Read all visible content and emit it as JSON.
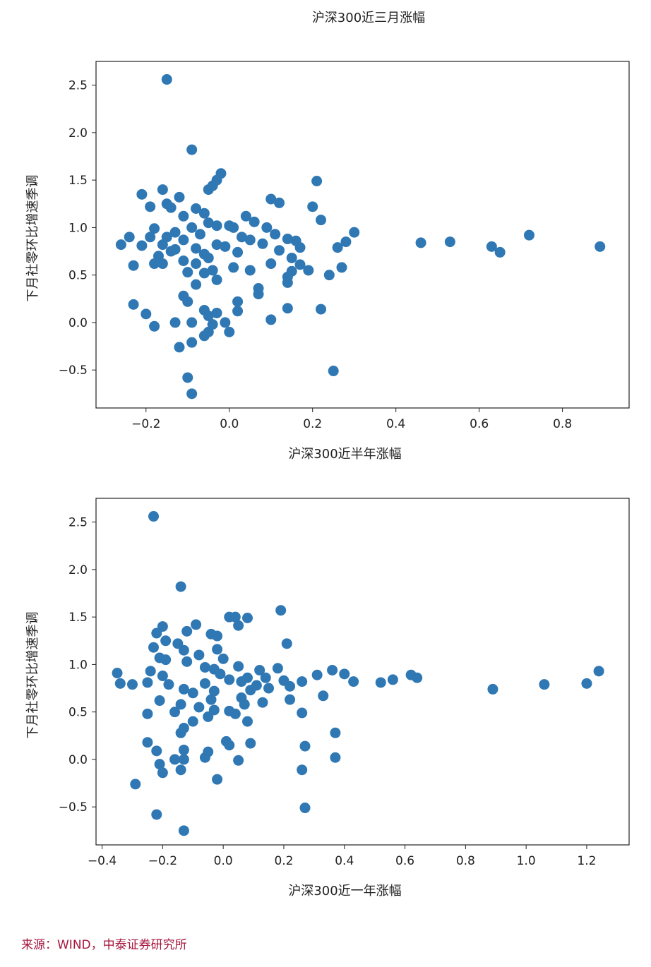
{
  "figure_title": "沪深300近三月涨幅",
  "source": "来源：WIND，中泰证券研究所",
  "colors": {
    "marker": "#2f78b4",
    "source_text": "#a5143c"
  },
  "chart_data": [
    {
      "type": "scatter",
      "title": "",
      "xlabel": "沪深300近半年涨幅",
      "ylabel": "下月社零环比增速季调",
      "xlim": [
        -0.32,
        0.96
      ],
      "ylim": [
        -0.9,
        2.75
      ],
      "xticks": [
        -0.2,
        0.0,
        0.2,
        0.4,
        0.6,
        0.8
      ],
      "xtick_labels": [
        "−0.2",
        "0.0",
        "0.2",
        "0.4",
        "0.6",
        "0.8"
      ],
      "yticks": [
        -0.5,
        0.0,
        0.5,
        1.0,
        1.5,
        2.0,
        2.5
      ],
      "ytick_labels": [
        "−0.5",
        "0.0",
        "0.5",
        "1.0",
        "1.5",
        "2.0",
        "2.5"
      ],
      "points": [
        [
          -0.15,
          2.56
        ],
        [
          -0.09,
          1.82
        ],
        [
          -0.02,
          1.57
        ],
        [
          -0.03,
          1.5
        ],
        [
          0.21,
          1.49
        ],
        [
          -0.04,
          1.44
        ],
        [
          -0.16,
          1.4
        ],
        [
          -0.05,
          1.4
        ],
        [
          -0.21,
          1.35
        ],
        [
          -0.12,
          1.32
        ],
        [
          0.1,
          1.3
        ],
        [
          0.12,
          1.26
        ],
        [
          -0.15,
          1.25
        ],
        [
          -0.19,
          1.22
        ],
        [
          -0.14,
          1.21
        ],
        [
          0.2,
          1.22
        ],
        [
          -0.08,
          1.2
        ],
        [
          -0.06,
          1.15
        ],
        [
          -0.11,
          1.12
        ],
        [
          0.04,
          1.12
        ],
        [
          0.22,
          1.08
        ],
        [
          0.06,
          1.06
        ],
        [
          -0.05,
          1.05
        ],
        [
          0.0,
          1.02
        ],
        [
          -0.03,
          1.02
        ],
        [
          -0.09,
          1.0
        ],
        [
          0.01,
          1.0
        ],
        [
          0.09,
          1.0
        ],
        [
          -0.18,
          0.99
        ],
        [
          0.3,
          0.95
        ],
        [
          -0.13,
          0.95
        ],
        [
          -0.07,
          0.93
        ],
        [
          0.11,
          0.93
        ],
        [
          -0.24,
          0.9
        ],
        [
          -0.19,
          0.9
        ],
        [
          0.72,
          0.92
        ],
        [
          -0.15,
          0.9
        ],
        [
          0.03,
          0.9
        ],
        [
          0.14,
          0.88
        ],
        [
          -0.11,
          0.87
        ],
        [
          0.05,
          0.87
        ],
        [
          0.16,
          0.86
        ],
        [
          0.28,
          0.85
        ],
        [
          0.46,
          0.84
        ],
        [
          0.53,
          0.85
        ],
        [
          -0.26,
          0.82
        ],
        [
          -0.21,
          0.81
        ],
        [
          -0.16,
          0.82
        ],
        [
          -0.03,
          0.82
        ],
        [
          0.08,
          0.83
        ],
        [
          0.63,
          0.8
        ],
        [
          0.89,
          0.8
        ],
        [
          -0.01,
          0.8
        ],
        [
          0.17,
          0.79
        ],
        [
          0.26,
          0.79
        ],
        [
          -0.13,
          0.77
        ],
        [
          -0.08,
          0.78
        ],
        [
          -0.14,
          0.75
        ],
        [
          0.65,
          0.74
        ],
        [
          0.12,
          0.76
        ],
        [
          -0.06,
          0.72
        ],
        [
          0.02,
          0.74
        ],
        [
          -0.17,
          0.7
        ],
        [
          -0.05,
          0.68
        ],
        [
          -0.11,
          0.65
        ],
        [
          0.15,
          0.68
        ],
        [
          -0.18,
          0.62
        ],
        [
          0.1,
          0.62
        ],
        [
          -0.08,
          0.62
        ],
        [
          0.17,
          0.61
        ],
        [
          -0.16,
          0.62
        ],
        [
          -0.23,
          0.6
        ],
        [
          0.27,
          0.58
        ],
        [
          0.01,
          0.58
        ],
        [
          0.05,
          0.55
        ],
        [
          0.19,
          0.55
        ],
        [
          -0.04,
          0.55
        ],
        [
          0.15,
          0.54
        ],
        [
          -0.1,
          0.53
        ],
        [
          0.24,
          0.5
        ],
        [
          -0.06,
          0.52
        ],
        [
          0.14,
          0.48
        ],
        [
          -0.03,
          0.45
        ],
        [
          0.14,
          0.42
        ],
        [
          -0.08,
          0.4
        ],
        [
          0.07,
          0.36
        ],
        [
          -0.11,
          0.28
        ],
        [
          0.07,
          0.3
        ],
        [
          0.02,
          0.22
        ],
        [
          -0.1,
          0.22
        ],
        [
          -0.23,
          0.19
        ],
        [
          0.22,
          0.14
        ],
        [
          0.14,
          0.15
        ],
        [
          -0.06,
          0.13
        ],
        [
          0.02,
          0.12
        ],
        [
          -0.03,
          0.1
        ],
        [
          -0.2,
          0.09
        ],
        [
          -0.05,
          0.07
        ],
        [
          0.1,
          0.03
        ],
        [
          -0.13,
          0.0
        ],
        [
          -0.09,
          0.0
        ],
        [
          -0.01,
          0.0
        ],
        [
          -0.04,
          -0.02
        ],
        [
          -0.18,
          -0.04
        ],
        [
          -0.05,
          -0.1
        ],
        [
          0.0,
          -0.1
        ],
        [
          -0.06,
          -0.14
        ],
        [
          -0.09,
          -0.21
        ],
        [
          -0.12,
          -0.26
        ],
        [
          0.25,
          -0.51
        ],
        [
          -0.1,
          -0.58
        ],
        [
          -0.09,
          -0.75
        ]
      ]
    },
    {
      "type": "scatter",
      "title": "",
      "xlabel": "沪深300近一年涨幅",
      "ylabel": "下月社零环比增速季调",
      "xlim": [
        -0.42,
        1.34
      ],
      "ylim": [
        -0.9,
        2.75
      ],
      "xticks": [
        -0.4,
        -0.2,
        0.0,
        0.2,
        0.4,
        0.6,
        0.8,
        1.0,
        1.2
      ],
      "xtick_labels": [
        "−0.4",
        "−0.2",
        "0.0",
        "0.2",
        "0.4",
        "0.6",
        "0.8",
        "1.0",
        "1.2"
      ],
      "yticks": [
        -0.5,
        0.0,
        0.5,
        1.0,
        1.5,
        2.0,
        2.5
      ],
      "ytick_labels": [
        "−0.5",
        "0.0",
        "0.5",
        "1.0",
        "1.5",
        "2.0",
        "2.5"
      ],
      "points": [
        [
          -0.23,
          2.56
        ],
        [
          -0.14,
          1.82
        ],
        [
          0.19,
          1.57
        ],
        [
          0.02,
          1.5
        ],
        [
          0.04,
          1.5
        ],
        [
          0.08,
          1.49
        ],
        [
          -0.09,
          1.42
        ],
        [
          -0.2,
          1.4
        ],
        [
          0.05,
          1.41
        ],
        [
          -0.12,
          1.35
        ],
        [
          -0.22,
          1.33
        ],
        [
          -0.04,
          1.32
        ],
        [
          -0.02,
          1.3
        ],
        [
          -0.19,
          1.25
        ],
        [
          0.21,
          1.22
        ],
        [
          -0.15,
          1.22
        ],
        [
          -0.23,
          1.18
        ],
        [
          -0.02,
          1.16
        ],
        [
          -0.13,
          1.15
        ],
        [
          -0.08,
          1.1
        ],
        [
          -0.21,
          1.07
        ],
        [
          0.0,
          1.06
        ],
        [
          -0.19,
          1.05
        ],
        [
          -0.12,
          1.03
        ],
        [
          -0.06,
          0.97
        ],
        [
          0.05,
          0.98
        ],
        [
          0.18,
          0.96
        ],
        [
          -0.03,
          0.95
        ],
        [
          0.12,
          0.94
        ],
        [
          0.36,
          0.94
        ],
        [
          -0.24,
          0.93
        ],
        [
          1.24,
          0.93
        ],
        [
          -0.35,
          0.91
        ],
        [
          0.31,
          0.89
        ],
        [
          -0.01,
          0.9
        ],
        [
          0.4,
          0.9
        ],
        [
          0.62,
          0.89
        ],
        [
          -0.2,
          0.88
        ],
        [
          0.08,
          0.86
        ],
        [
          0.14,
          0.86
        ],
        [
          0.64,
          0.86
        ],
        [
          0.02,
          0.84
        ],
        [
          0.56,
          0.84
        ],
        [
          0.2,
          0.83
        ],
        [
          0.43,
          0.82
        ],
        [
          -0.25,
          0.81
        ],
        [
          0.26,
          0.82
        ],
        [
          0.06,
          0.82
        ],
        [
          0.52,
          0.81
        ],
        [
          -0.34,
          0.8
        ],
        [
          -0.3,
          0.79
        ],
        [
          1.2,
          0.8
        ],
        [
          -0.18,
          0.79
        ],
        [
          -0.06,
          0.8
        ],
        [
          1.06,
          0.79
        ],
        [
          0.11,
          0.78
        ],
        [
          0.22,
          0.77
        ],
        [
          0.89,
          0.74
        ],
        [
          -0.13,
          0.74
        ],
        [
          0.15,
          0.75
        ],
        [
          0.09,
          0.73
        ],
        [
          -0.03,
          0.72
        ],
        [
          -0.1,
          0.7
        ],
        [
          0.33,
          0.67
        ],
        [
          0.06,
          0.65
        ],
        [
          0.22,
          0.63
        ],
        [
          -0.04,
          0.63
        ],
        [
          -0.21,
          0.62
        ],
        [
          0.13,
          0.6
        ],
        [
          -0.14,
          0.58
        ],
        [
          0.07,
          0.58
        ],
        [
          -0.08,
          0.55
        ],
        [
          -0.03,
          0.52
        ],
        [
          -0.16,
          0.5
        ],
        [
          0.02,
          0.51
        ],
        [
          -0.25,
          0.48
        ],
        [
          0.26,
          0.49
        ],
        [
          0.04,
          0.48
        ],
        [
          -0.05,
          0.45
        ],
        [
          -0.1,
          0.4
        ],
        [
          0.08,
          0.4
        ],
        [
          -0.13,
          0.33
        ],
        [
          -0.14,
          0.28
        ],
        [
          0.37,
          0.28
        ],
        [
          -0.25,
          0.18
        ],
        [
          0.01,
          0.19
        ],
        [
          0.09,
          0.17
        ],
        [
          0.27,
          0.14
        ],
        [
          -0.13,
          0.1
        ],
        [
          -0.22,
          0.09
        ],
        [
          -0.05,
          0.08
        ],
        [
          0.02,
          0.15
        ],
        [
          -0.06,
          0.02
        ],
        [
          0.37,
          0.02
        ],
        [
          -0.16,
          0.0
        ],
        [
          -0.13,
          0.0
        ],
        [
          0.05,
          -0.01
        ],
        [
          -0.21,
          -0.05
        ],
        [
          -0.14,
          -0.11
        ],
        [
          0.26,
          -0.11
        ],
        [
          -0.2,
          -0.14
        ],
        [
          -0.02,
          -0.21
        ],
        [
          -0.29,
          -0.26
        ],
        [
          0.27,
          -0.51
        ],
        [
          -0.22,
          -0.58
        ],
        [
          -0.13,
          -0.75
        ]
      ]
    }
  ]
}
